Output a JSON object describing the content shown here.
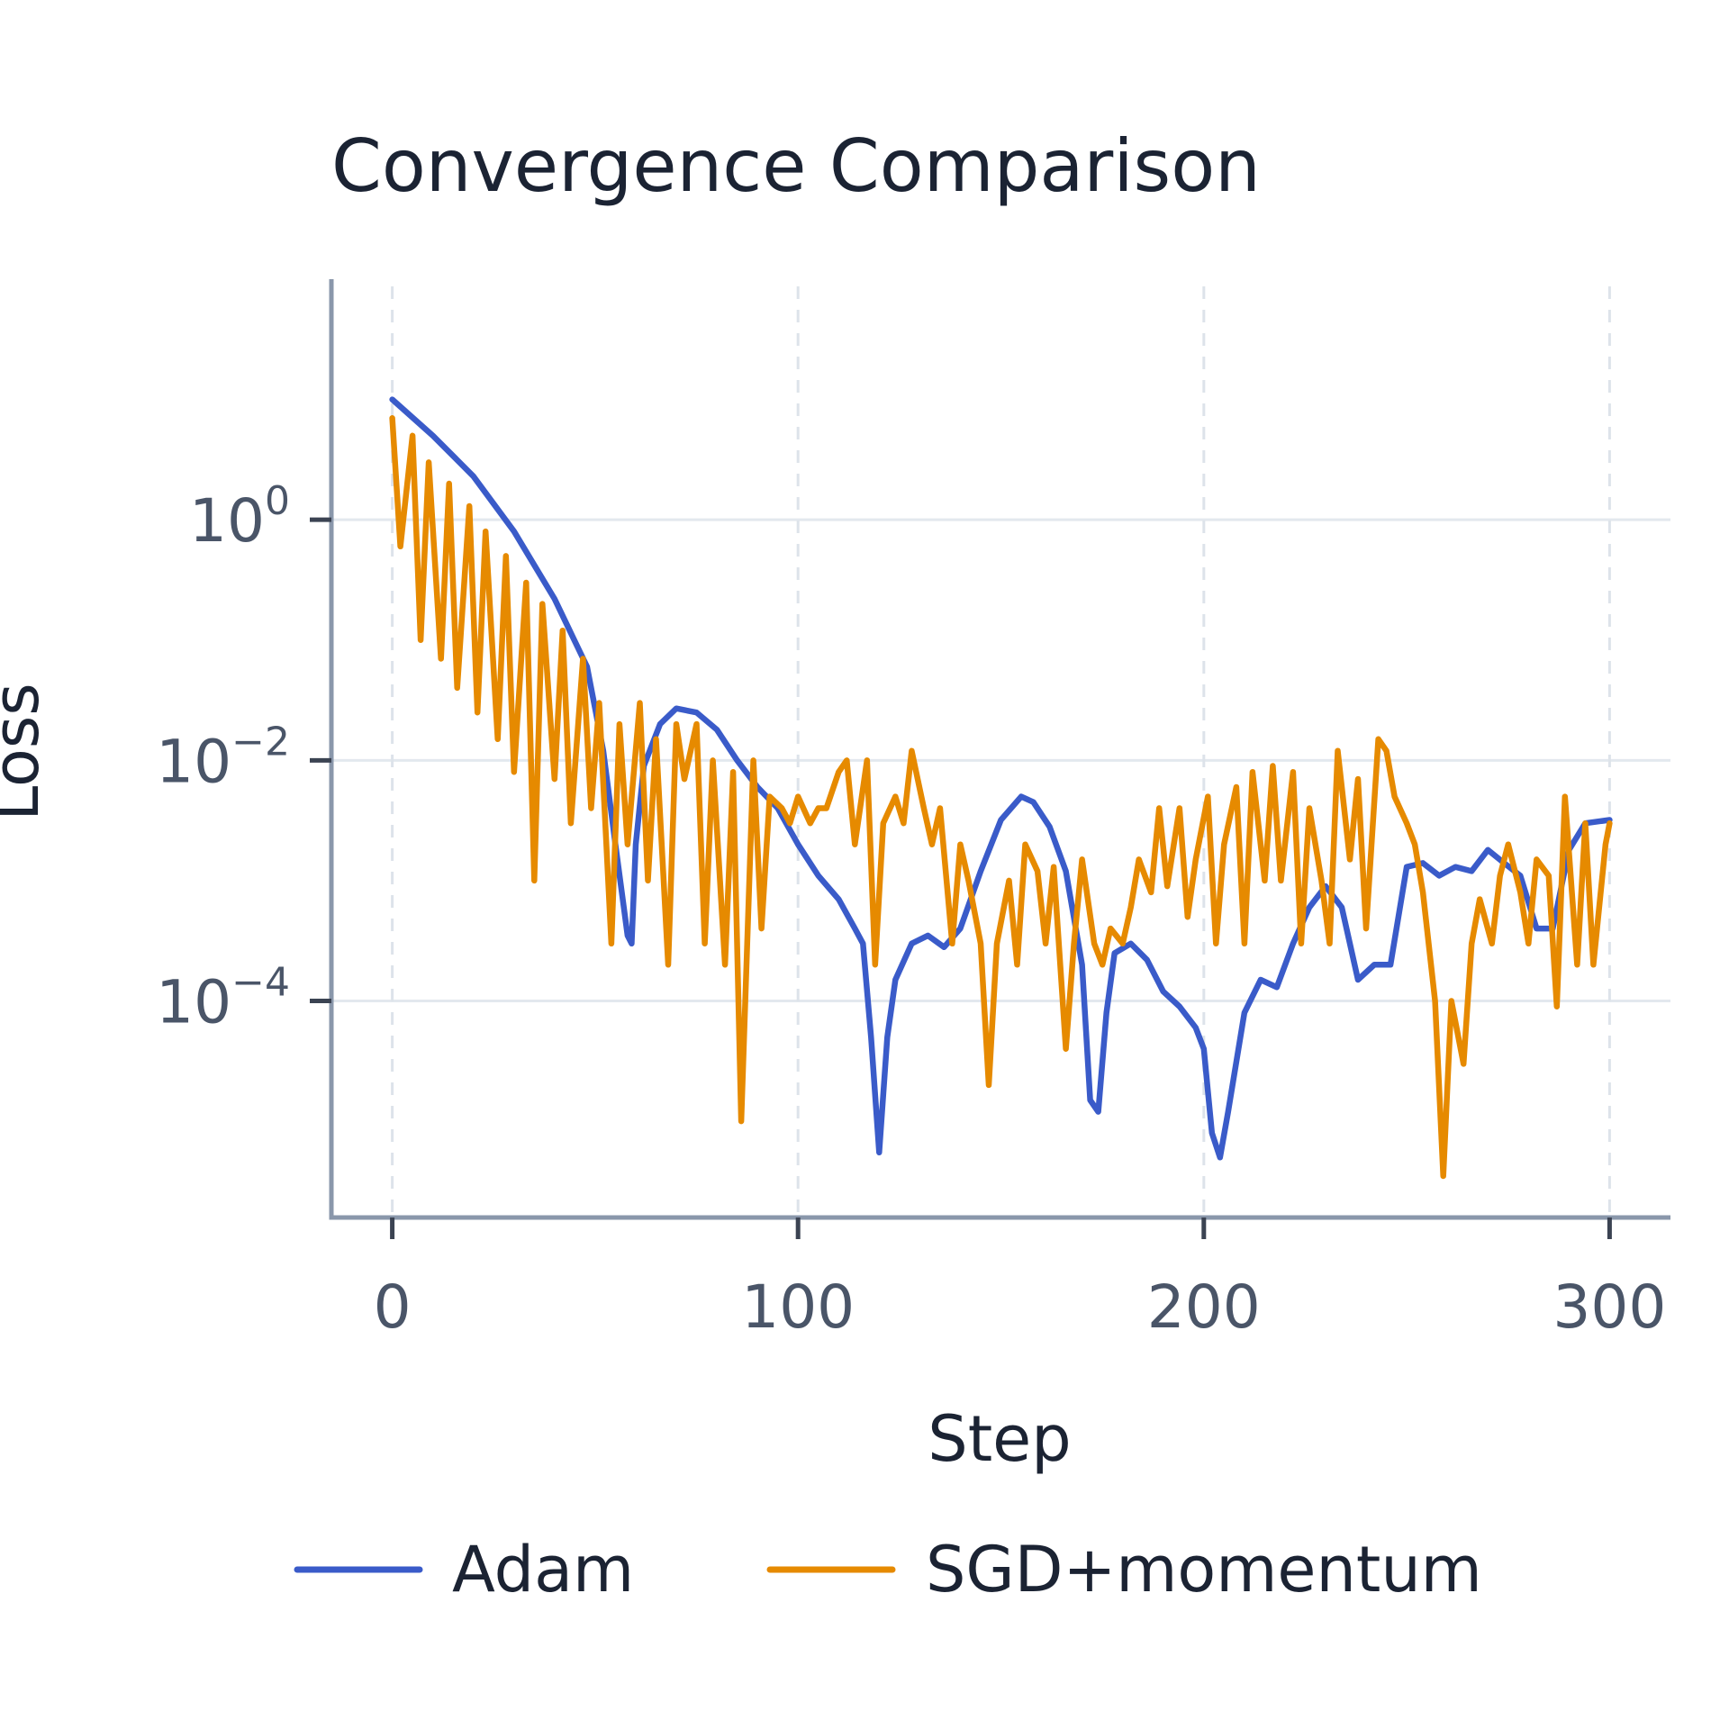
{
  "chart_data": {
    "type": "line",
    "title": "Convergence Comparison",
    "xlabel": "Step",
    "ylabel": "Loss",
    "xlim": [
      -15,
      315
    ],
    "ylim": [
      -5.8,
      2.0
    ],
    "yscale": "log",
    "grid": {
      "horizontal": true,
      "vertical": "dashed"
    },
    "legend_position": "bottom",
    "xticks": [
      {
        "value": 0,
        "label": "0"
      },
      {
        "value": 100,
        "label": "100"
      },
      {
        "value": 200,
        "label": "200"
      },
      {
        "value": 300,
        "label": "300"
      }
    ],
    "yticks": [
      {
        "value": 1,
        "base": "10",
        "exp": "0"
      },
      {
        "value": 0.01,
        "base": "10",
        "exp": "−2"
      },
      {
        "value": 0.0001,
        "base": "10",
        "exp": "−4"
      }
    ],
    "series": [
      {
        "name": "Adam",
        "color": "#3a5bc9",
        "x": [
          0,
          10,
          20,
          30,
          40,
          48,
          52,
          55,
          58,
          59,
          60,
          62,
          66,
          70,
          75,
          80,
          85,
          90,
          95,
          100,
          105,
          110,
          114,
          116,
          118,
          120,
          122,
          124,
          128,
          132,
          136,
          140,
          145,
          150,
          155,
          158,
          162,
          166,
          170,
          172,
          174,
          176,
          178,
          182,
          186,
          190,
          194,
          198,
          200,
          202,
          204,
          206,
          210,
          214,
          218,
          222,
          226,
          230,
          234,
          238,
          242,
          246,
          250,
          254,
          258,
          262,
          266,
          270,
          274,
          278,
          282,
          286,
          290,
          294,
          300
        ],
        "y": [
          10,
          5,
          2.3,
          0.8,
          0.22,
          0.06,
          0.012,
          0.002,
          0.00035,
          0.0003,
          0.002,
          0.009,
          0.02,
          0.027,
          0.025,
          0.018,
          0.01,
          0.006,
          0.004,
          0.002,
          0.0011,
          0.0007,
          0.0004,
          0.0003,
          5e-05,
          5.5e-06,
          5e-05,
          0.00015,
          0.0003,
          0.00035,
          0.00028,
          0.0004,
          0.0012,
          0.0032,
          0.005,
          0.0045,
          0.0028,
          0.0012,
          0.0002,
          1.5e-05,
          1.2e-05,
          8e-05,
          0.00025,
          0.0003,
          0.00022,
          0.00012,
          9e-05,
          6e-05,
          4e-05,
          8e-06,
          5e-06,
          1.2e-05,
          8e-05,
          0.00015,
          0.00013,
          0.0003,
          0.0006,
          0.0009,
          0.0006,
          0.00015,
          0.0002,
          0.0002,
          0.0013,
          0.0014,
          0.0011,
          0.0013,
          0.0012,
          0.0018,
          0.0014,
          0.0011,
          0.0004,
          0.0004,
          0.0018,
          0.003,
          0.0032
        ]
      },
      {
        "name": "SGD+momentum",
        "color": "#e68a00",
        "x": [
          0,
          2,
          5,
          7,
          9,
          12,
          14,
          16,
          19,
          21,
          23,
          26,
          28,
          30,
          33,
          35,
          37,
          40,
          42,
          44,
          47,
          49,
          51,
          54,
          56,
          58,
          61,
          63,
          65,
          68,
          70,
          72,
          75,
          77,
          79,
          82,
          84,
          86,
          89,
          91,
          93,
          96,
          98,
          100,
          103,
          105,
          107,
          110,
          112,
          114,
          117,
          119,
          121,
          124,
          126,
          128,
          131,
          133,
          135,
          138,
          140,
          142,
          145,
          147,
          149,
          152,
          154,
          156,
          159,
          161,
          163,
          166,
          168,
          170,
          173,
          175,
          177,
          180,
          182,
          184,
          187,
          189,
          191,
          194,
          196,
          198,
          201,
          203,
          205,
          208,
          210,
          212,
          215,
          217,
          219,
          222,
          224,
          226,
          229,
          231,
          233,
          236,
          238,
          240,
          243,
          245,
          247,
          250,
          252,
          254,
          257,
          259,
          261,
          264,
          266,
          268,
          271,
          273,
          275,
          278,
          280,
          282,
          285,
          287,
          289,
          292,
          294,
          296,
          299,
          300
        ],
        "y": [
          7,
          0.6,
          5,
          0.1,
          3,
          0.07,
          2,
          0.04,
          1.3,
          0.025,
          0.8,
          0.015,
          0.5,
          0.008,
          0.3,
          0.001,
          0.2,
          0.007,
          0.12,
          0.003,
          0.07,
          0.004,
          0.03,
          0.0003,
          0.02,
          0.002,
          0.03,
          0.001,
          0.015,
          0.0002,
          0.02,
          0.007,
          0.02,
          0.0003,
          0.01,
          0.0002,
          0.008,
          1e-05,
          0.01,
          0.0004,
          0.005,
          0.004,
          0.003,
          0.005,
          0.003,
          0.004,
          0.004,
          0.008,
          0.01,
          0.002,
          0.01,
          0.0002,
          0.003,
          0.005,
          0.003,
          0.012,
          0.004,
          0.002,
          0.004,
          0.0003,
          0.002,
          0.001,
          0.0003,
          2e-05,
          0.0003,
          0.001,
          0.0002,
          0.002,
          0.0012,
          0.0003,
          0.0013,
          4e-05,
          0.0003,
          0.0015,
          0.0003,
          0.0002,
          0.0004,
          0.0003,
          0.0006,
          0.0015,
          0.0008,
          0.004,
          0.0009,
          0.004,
          0.0005,
          0.0015,
          0.005,
          0.0003,
          0.002,
          0.006,
          0.0003,
          0.008,
          0.001,
          0.009,
          0.001,
          0.008,
          0.0003,
          0.004,
          0.001,
          0.0003,
          0.012,
          0.0015,
          0.007,
          0.0004,
          0.015,
          0.012,
          0.005,
          0.003,
          0.002,
          0.0008,
          0.0001,
          3.5e-06,
          0.0001,
          3e-05,
          0.0003,
          0.0007,
          0.0003,
          0.0011,
          0.002,
          0.0008,
          0.0003,
          0.0015,
          0.0011,
          9e-05,
          0.005,
          0.0002,
          0.003,
          0.0002,
          0.002,
          0.003
        ]
      }
    ]
  }
}
